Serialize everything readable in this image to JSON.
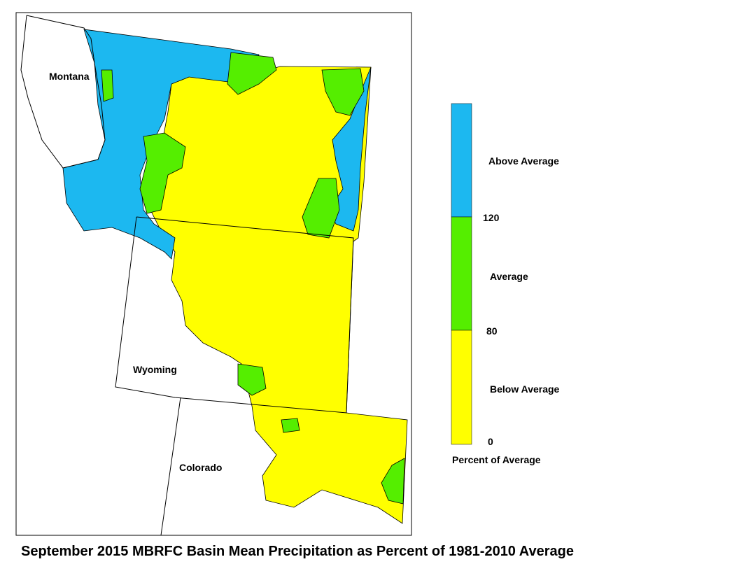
{
  "map": {
    "states": [
      "Montana",
      "Wyoming",
      "Colorado"
    ]
  },
  "legend": {
    "title": "Percent of Average",
    "classes": [
      {
        "label": "Above Average",
        "color": "#1cb8f0"
      },
      {
        "label": "Average",
        "color": "#55ee00"
      },
      {
        "label": "Below Average",
        "color": "#ffff00"
      }
    ],
    "breaks": [
      120,
      80,
      0
    ]
  },
  "title": "September 2015 MBRFC Basin Mean Precipitation as Percent of 1981-2010 Average"
}
